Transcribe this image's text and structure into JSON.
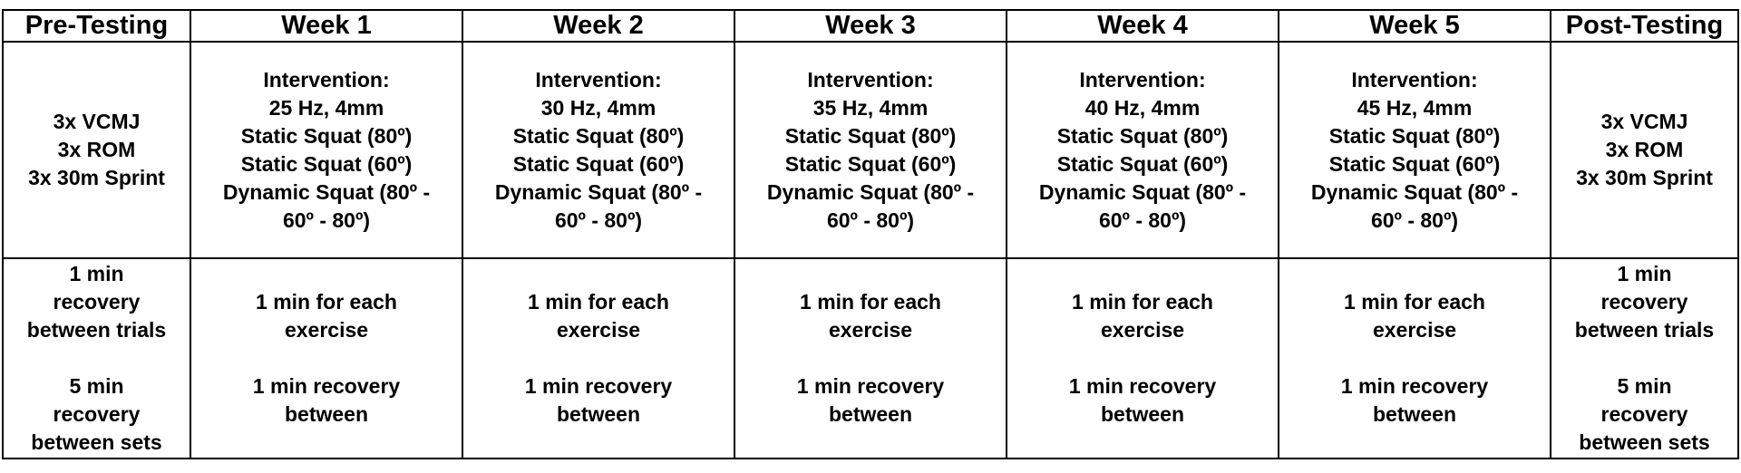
{
  "columns": [
    {
      "title": "Pre-Testing",
      "protocol": [
        "3x VCMJ",
        "3x ROM",
        "3x 30m Sprint"
      ],
      "recovery": [
        "1 min\nrecovery\nbetween trials",
        "5 min\nrecovery\nbetween sets"
      ]
    },
    {
      "title": "Week 1",
      "protocol": [
        "Intervention:",
        "25 Hz, 4mm",
        "Static Squat (80º)",
        "Static Squat (60º)",
        "Dynamic Squat (80º -",
        "60º - 80º)"
      ],
      "recovery": [
        "1 min for each\nexercise",
        "1 min recovery\nbetween"
      ]
    },
    {
      "title": "Week 2",
      "protocol": [
        "Intervention:",
        "30 Hz, 4mm",
        "Static Squat (80º)",
        "Static Squat (60º)",
        "Dynamic Squat (80º -",
        "60º - 80º)"
      ],
      "recovery": [
        "1 min for each\nexercise",
        "1 min recovery\nbetween"
      ]
    },
    {
      "title": "Week 3",
      "protocol": [
        "Intervention:",
        "35 Hz, 4mm",
        "Static Squat (80º)",
        "Static Squat (60º)",
        "Dynamic Squat (80º -",
        "60º - 80º)"
      ],
      "recovery": [
        "1 min for each\nexercise",
        "1 min recovery\nbetween"
      ]
    },
    {
      "title": "Week 4",
      "protocol": [
        "Intervention:",
        "40 Hz, 4mm",
        "Static Squat (80º)",
        "Static Squat (60º)",
        "Dynamic Squat (80º -",
        "60º - 80º)"
      ],
      "recovery": [
        "1 min for each\nexercise",
        "1 min recovery\nbetween"
      ]
    },
    {
      "title": "Week 5",
      "protocol": [
        "Intervention:",
        "45 Hz, 4mm",
        "Static Squat (80º)",
        "Static Squat (60º)",
        "Dynamic Squat (80º -",
        "60º - 80º)"
      ],
      "recovery": [
        "1 min for each\nexercise",
        "1 min recovery\nbetween"
      ]
    },
    {
      "title": "Post-Testing",
      "protocol": [
        "3x VCMJ",
        "3x ROM",
        "3x 30m Sprint"
      ],
      "recovery": [
        "1 min\nrecovery\nbetween trials",
        "5 min\nrecovery\nbetween sets"
      ]
    }
  ]
}
